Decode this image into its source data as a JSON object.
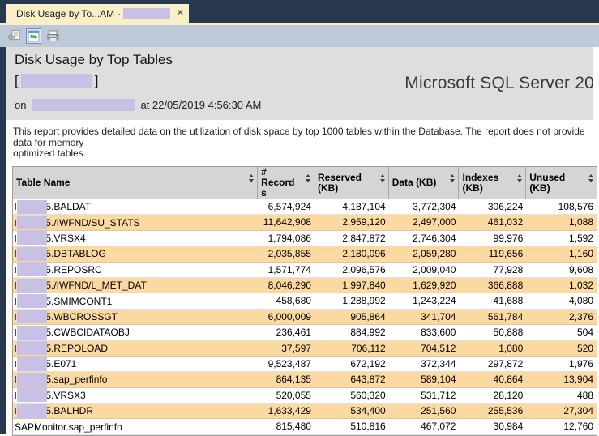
{
  "tab": {
    "title": "Disk Usage by To...AM - ",
    "close_glyph": "✕"
  },
  "toolbar": {
    "icons": [
      "parent-report-icon",
      "refresh-icon",
      "print-icon"
    ]
  },
  "report": {
    "title": "Disk Usage by Top Tables",
    "bracket_open": "[",
    "bracket_close": "]",
    "on_label": "on",
    "timestamp_text": "at 22/05/2019 4:56:30 AM",
    "server_text": "Microsoft SQL Server 20",
    "description_lines": [
      "This report provides detailed data on the utilization of disk space by top 1000 tables within the Database. The report does not provide data for memory",
      "optimized tables."
    ]
  },
  "table": {
    "columns": [
      "Table Name",
      "# Records",
      "Reserved (KB)",
      "Data (KB)",
      "Indexes (KB)",
      "Unused (KB)"
    ],
    "partial_schema_glyph": "5",
    "rows": [
      {
        "redacted": true,
        "name": ".BALDAT",
        "records": "6,574,924",
        "reserved": "4,187,104",
        "data": "3,772,304",
        "indexes": "306,224",
        "unused": "108,576"
      },
      {
        "redacted": true,
        "name": "./IWFND/SU_STATS",
        "records": "11,642,908",
        "reserved": "2,959,120",
        "data": "2,497,000",
        "indexes": "461,032",
        "unused": "1,088"
      },
      {
        "redacted": true,
        "name": ".VRSX4",
        "records": "1,794,086",
        "reserved": "2,847,872",
        "data": "2,746,304",
        "indexes": "99,976",
        "unused": "1,592"
      },
      {
        "redacted": true,
        "name": ".DBTABLOG",
        "records": "2,035,855",
        "reserved": "2,180,096",
        "data": "2,059,280",
        "indexes": "119,656",
        "unused": "1,160"
      },
      {
        "redacted": true,
        "name": ".REPOSRC",
        "records": "1,571,774",
        "reserved": "2,096,576",
        "data": "2,009,040",
        "indexes": "77,928",
        "unused": "9,608"
      },
      {
        "redacted": true,
        "name": "./IWFND/L_MET_DAT",
        "records": "8,046,290",
        "reserved": "1,997,840",
        "data": "1,629,920",
        "indexes": "366,888",
        "unused": "1,032"
      },
      {
        "redacted": true,
        "name": ".SMIMCONT1",
        "records": "458,680",
        "reserved": "1,288,992",
        "data": "1,243,224",
        "indexes": "41,688",
        "unused": "4,080"
      },
      {
        "redacted": true,
        "name": ".WBCROSSGT",
        "records": "6,000,009",
        "reserved": "905,864",
        "data": "341,704",
        "indexes": "561,784",
        "unused": "2,376"
      },
      {
        "redacted": true,
        "name": ".CWBCIDATAOBJ",
        "records": "236,461",
        "reserved": "884,992",
        "data": "833,600",
        "indexes": "50,888",
        "unused": "504"
      },
      {
        "redacted": true,
        "name": ".REPOLOAD",
        "records": "37,597",
        "reserved": "706,112",
        "data": "704,512",
        "indexes": "1,080",
        "unused": "520"
      },
      {
        "redacted": true,
        "name": ".E071",
        "records": "9,523,487",
        "reserved": "672,192",
        "data": "372,344",
        "indexes": "297,872",
        "unused": "1,976"
      },
      {
        "redacted": true,
        "name": ".sap_perfinfo",
        "records": "864,135",
        "reserved": "643,872",
        "data": "589,104",
        "indexes": "40,864",
        "unused": "13,904"
      },
      {
        "redacted": true,
        "name": ".VRSX3",
        "records": "520,055",
        "reserved": "560,320",
        "data": "531,712",
        "indexes": "28,120",
        "unused": "488"
      },
      {
        "redacted": true,
        "name": ".BALHDR",
        "records": "1,633,429",
        "reserved": "534,400",
        "data": "251,560",
        "indexes": "255,536",
        "unused": "27,304"
      },
      {
        "redacted": false,
        "name": "SAPMonitor.sap_perfinfo",
        "records": "815,480",
        "reserved": "510,816",
        "data": "467,072",
        "indexes": "30,984",
        "unused": "12,760"
      }
    ]
  },
  "colors": {
    "navy": "#273850",
    "cream": "#FBEFC8",
    "toolblue": "#BDC8D8",
    "hdrgray": "#DEDEDE",
    "thgray": "#D5D5D5",
    "orange": "#FBD9A1",
    "purple": "#C9C0E6",
    "bordergray": "#9C9C9C"
  }
}
